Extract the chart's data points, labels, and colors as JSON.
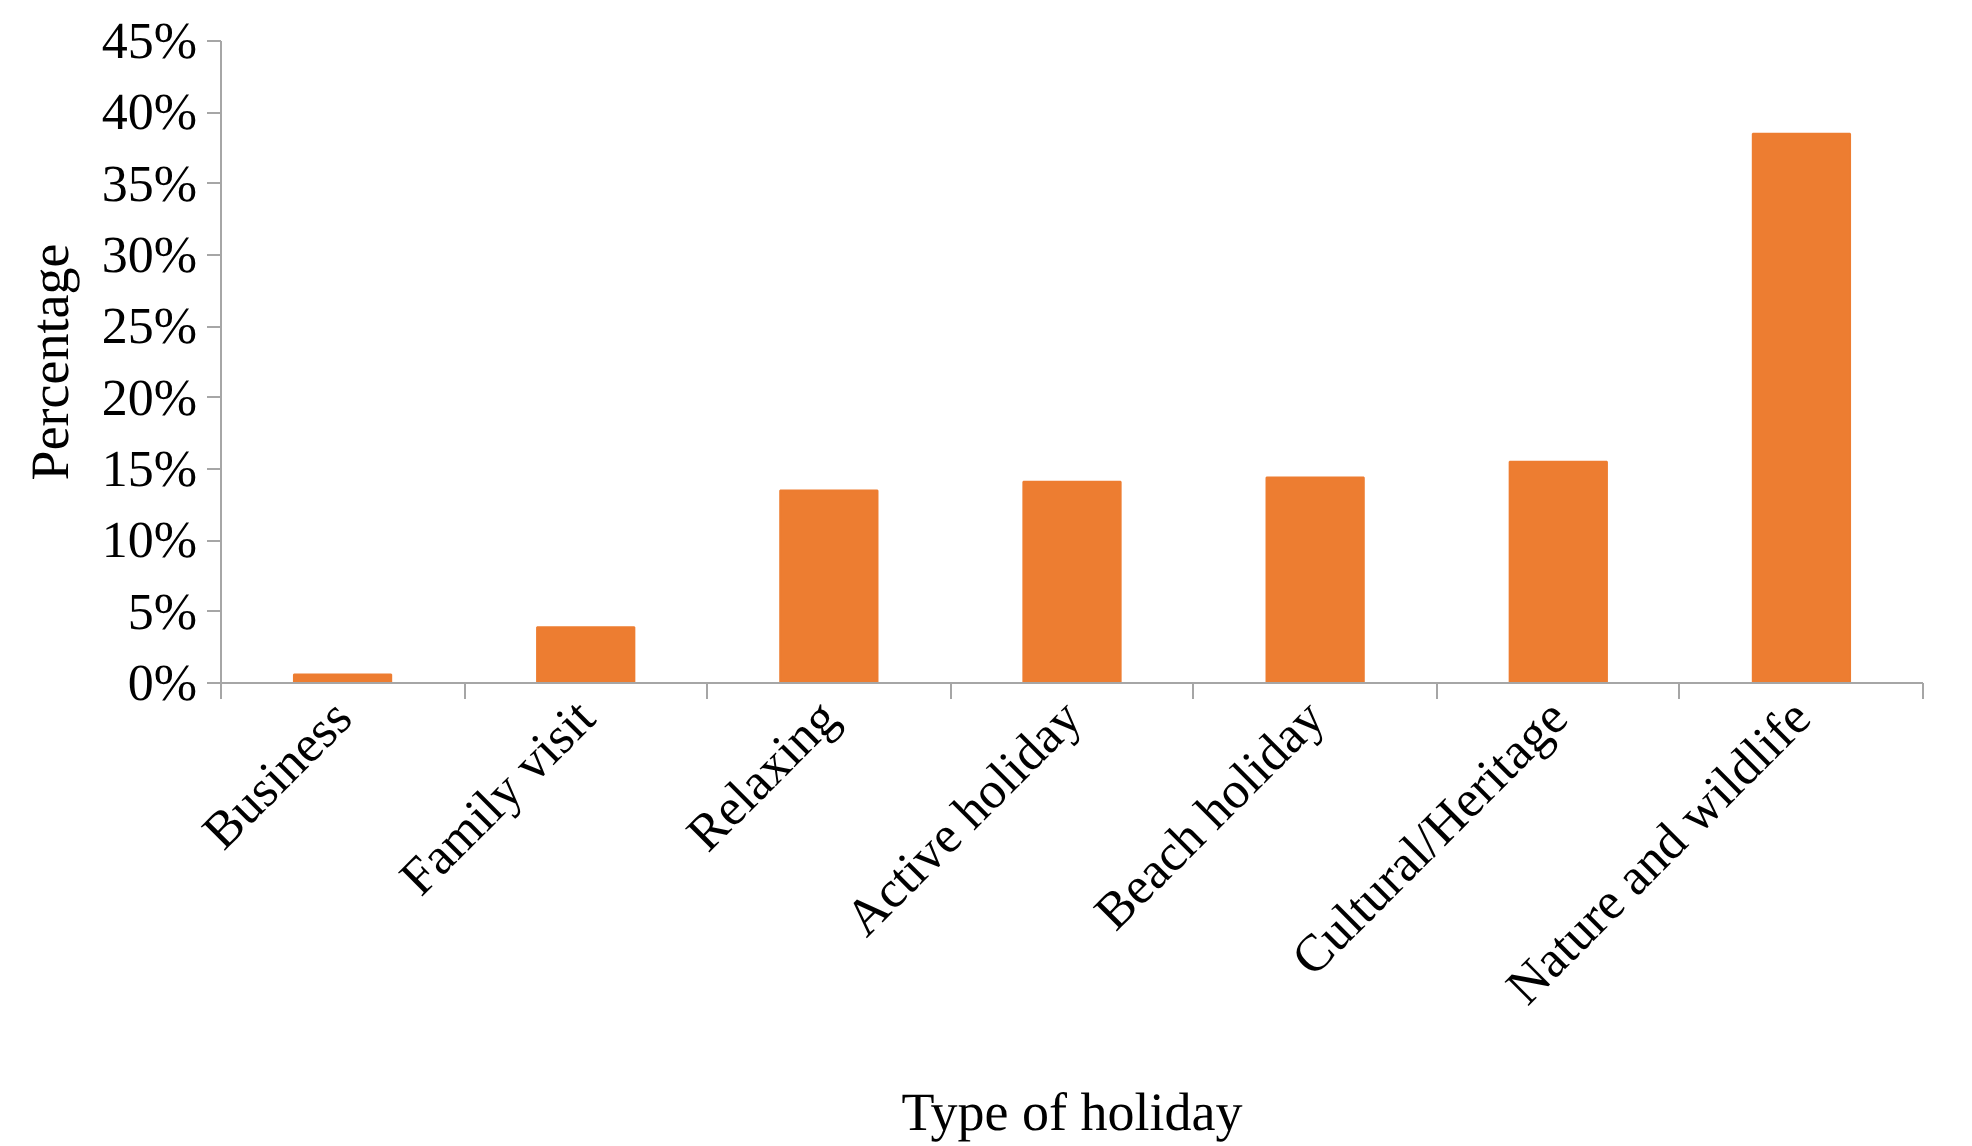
{
  "chart_data": {
    "type": "bar",
    "xlabel": "Type of holiday",
    "ylabel": "Percentage",
    "categories": [
      "Business",
      "Family visit",
      "Relaxing",
      "Active holiday",
      "Beach holiday",
      "Cultural/Heritage",
      "Nature and wildlife"
    ],
    "values": [
      0.6,
      3.9,
      13.5,
      14.1,
      14.4,
      15.5,
      38.5
    ],
    "color": "#ed7d31",
    "ylim": [
      0,
      45
    ],
    "yticks": [
      {
        "value": 0,
        "label": "0%"
      },
      {
        "value": 5,
        "label": "5%"
      },
      {
        "value": 10,
        "label": "10%"
      },
      {
        "value": 15,
        "label": "15%"
      },
      {
        "value": 20,
        "label": "20%"
      },
      {
        "value": 25,
        "label": "25%"
      },
      {
        "value": 30,
        "label": "30%"
      },
      {
        "value": 35,
        "label": "35%"
      },
      {
        "value": 40,
        "label": "40%"
      },
      {
        "value": 45,
        "label": "45%"
      }
    ],
    "grid": false
  }
}
